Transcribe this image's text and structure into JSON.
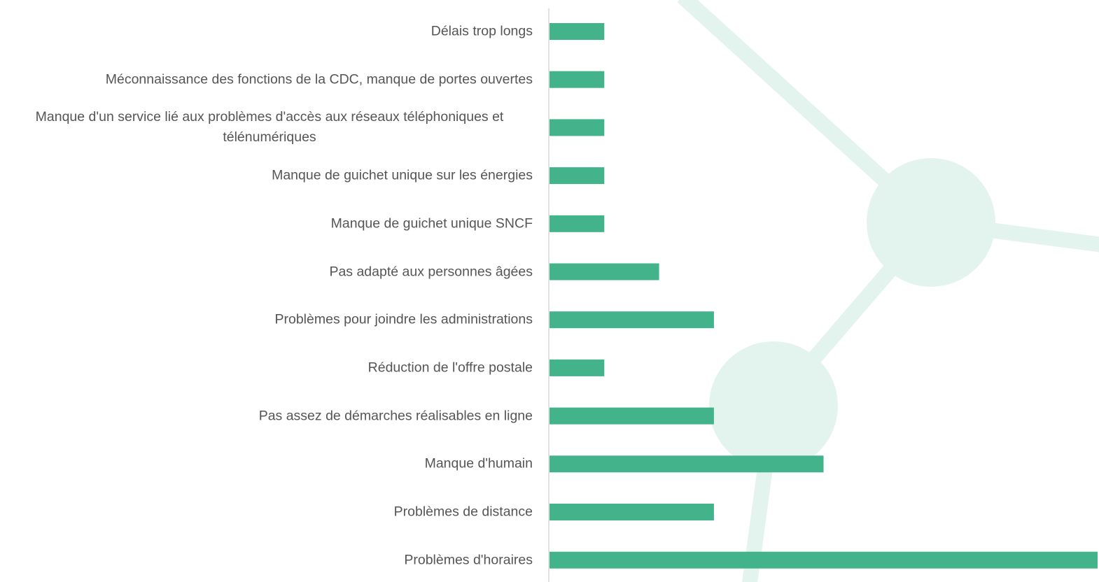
{
  "chart_data": {
    "type": "hbar",
    "categories": [
      "Délais trop longs",
      "Méconnaissance des fonctions de la CDC, manque de portes ouvertes",
      "Manque d'un service lié aux problèmes d'accès aux réseaux téléphoniques et télénumériques",
      "Manque de guichet unique sur les énergies",
      "Manque de guichet unique SNCF",
      "Pas adapté aux personnes âgées",
      "Problèmes pour joindre les administrations",
      "Réduction de l'offre postale",
      "Pas assez de démarches réalisables en ligne",
      "Manque d'humain",
      "Problèmes de distance",
      "Problèmes d'horaires"
    ],
    "values": [
      1,
      1,
      1,
      1,
      1,
      2,
      3,
      1,
      3,
      5,
      3,
      10
    ],
    "color": "#43b38c",
    "xlim": [
      0,
      10
    ]
  }
}
